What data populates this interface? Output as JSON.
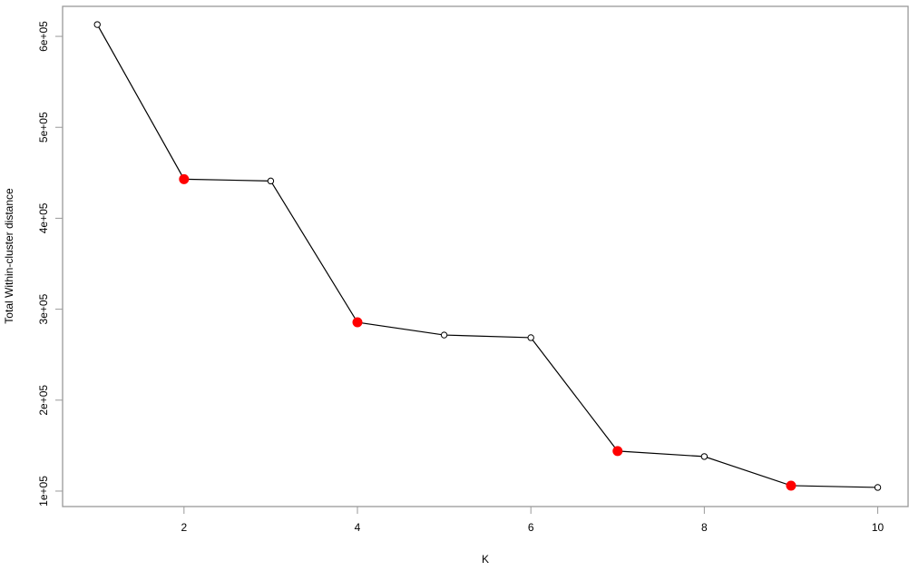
{
  "chart_data": {
    "type": "line",
    "title": "",
    "xlabel": "K",
    "ylabel": "Total Within-cluster distance",
    "x": [
      1,
      2,
      3,
      4,
      5,
      6,
      7,
      8,
      9,
      10
    ],
    "values": [
      613000,
      443000,
      441000,
      285600,
      271600,
      268700,
      144000,
      138000,
      106000,
      104000
    ],
    "highlighted_x": [
      2,
      4,
      7,
      9
    ],
    "xlim": [
      0.6,
      10.35
    ],
    "ylim": [
      83000,
      633000
    ],
    "xticks": [
      2,
      4,
      6,
      8,
      10
    ],
    "xtick_labels": [
      "2",
      "4",
      "6",
      "8",
      "10"
    ],
    "yticks": [
      100000,
      200000,
      300000,
      400000,
      500000,
      600000
    ],
    "ytick_labels": [
      "1e+05",
      "2e+05",
      "3e+05",
      "4e+05",
      "5e+05",
      "6e+05"
    ],
    "grid": false,
    "colors": {
      "line": "#000000",
      "point_fill": "#ffffff",
      "highlight": "#ff0000",
      "axis": "#999999"
    }
  }
}
